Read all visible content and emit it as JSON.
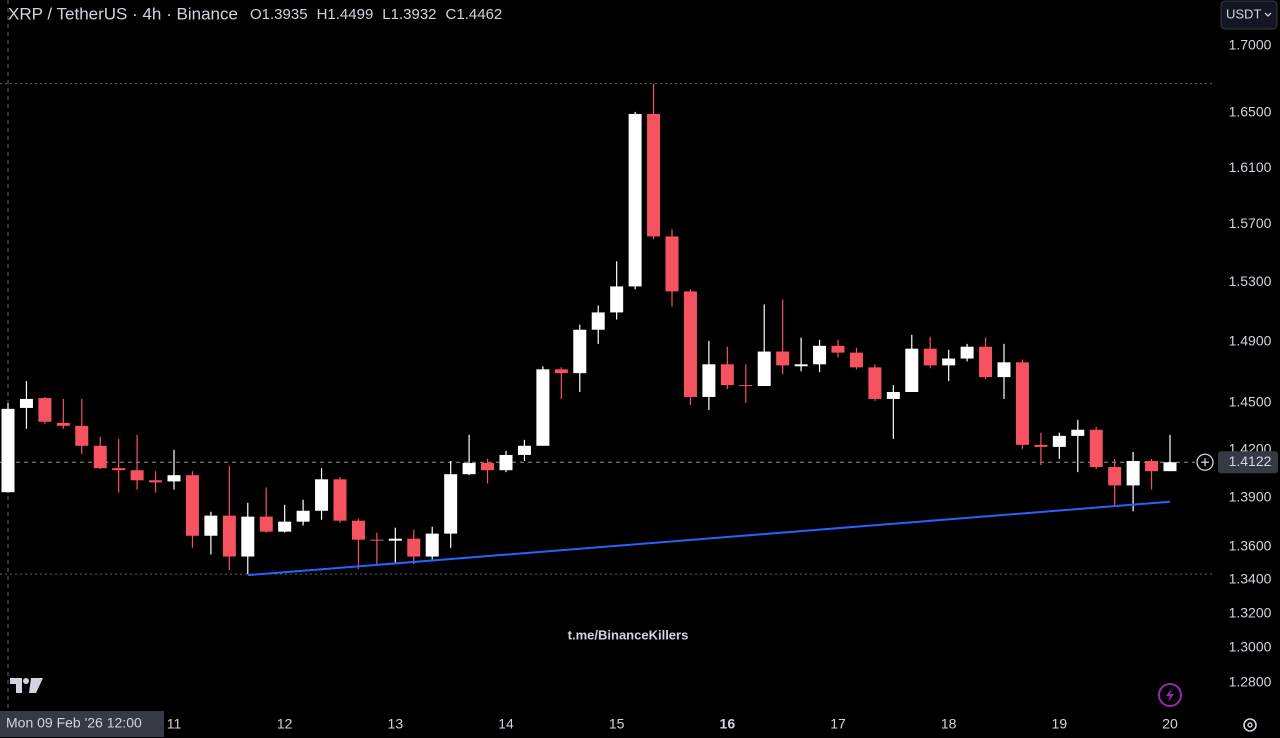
{
  "chart_data": {
    "type": "candlestick",
    "title": "XRP / TetherUS · 4h · Binance",
    "ohlc_legend": [
      {
        "key": "O",
        "value": 1.3935
      },
      {
        "key": "H",
        "value": 1.4499
      },
      {
        "key": "L",
        "value": 1.3932
      },
      {
        "key": "C",
        "value": 1.4462
      }
    ],
    "currency": "USDT",
    "watermark": "t.me/BinanceKillers",
    "crosshair_label": "Mon 09 Feb '26 12:00",
    "categories": [
      null,
      null,
      null,
      null,
      null,
      null,
      null,
      null,
      null,
      "11",
      null,
      null,
      null,
      null,
      null,
      "12",
      null,
      null,
      null,
      null,
      null,
      "13",
      null,
      null,
      null,
      null,
      null,
      "14",
      null,
      null,
      null,
      null,
      null,
      "15",
      null,
      null,
      null,
      null,
      null,
      "16",
      null,
      null,
      null,
      null,
      null,
      "17",
      null,
      null,
      null,
      null,
      null,
      "18",
      null,
      null,
      null,
      null,
      null,
      "19",
      null,
      null,
      null,
      null,
      null,
      "20"
    ],
    "bold_categories": [
      39
    ],
    "open": [
      1.3935,
      1.4468,
      1.4532,
      1.4372,
      1.4353,
      1.4226,
      1.4085,
      1.4072,
      1.4009,
      1.4002,
      1.4041,
      1.3667,
      1.379,
      1.3541,
      1.3784,
      1.3692,
      1.3753,
      1.382,
      1.4015,
      1.3759,
      1.3643,
      1.3637,
      1.3649,
      1.3541,
      1.368,
      1.4047,
      1.4117,
      1.4072,
      1.4168,
      1.4226,
      1.4719,
      1.4694,
      1.4981,
      1.5097,
      1.5273,
      1.6493,
      1.5617,
      1.5239,
      1.4539,
      1.4752,
      1.4616,
      1.461,
      1.4836,
      1.4739,
      1.4752,
      1.4874,
      1.4829,
      1.4732,
      1.4526,
      1.4571,
      1.4855,
      1.4745,
      1.479,
      1.4868,
      1.4668,
      1.4765,
      1.4232,
      1.4219,
      1.4289,
      1.4328,
      1.4092,
      1.3977,
      1.413,
      1.4066
    ],
    "high": [
      1.4499,
      1.4642,
      1.4539,
      1.4526,
      1.4526,
      1.4283,
      1.427,
      1.4296,
      1.4066,
      1.42,
      1.4066,
      1.3814,
      1.4098,
      1.3869,
      1.3964,
      1.3857,
      1.3888,
      1.4085,
      1.4028,
      1.3771,
      1.3686,
      1.3716,
      1.3704,
      1.3722,
      1.413,
      1.4296,
      1.4143,
      1.4194,
      1.4264,
      1.4739,
      1.4732,
      1.5015,
      1.5144,
      1.5445,
      1.6508,
      1.6717,
      1.5666,
      1.5253,
      1.4906,
      1.4868,
      1.4752,
      1.5151,
      1.5185,
      1.4928,
      1.4914,
      1.4914,
      1.4861,
      1.4752,
      1.4616,
      1.4947,
      1.4934,
      1.4848,
      1.4887,
      1.4928,
      1.4887,
      1.4784,
      1.4309,
      1.4309,
      1.4392,
      1.4347,
      1.4143,
      1.4187,
      1.4143,
      1.4296
    ],
    "low": [
      1.3932,
      1.4334,
      1.4366,
      1.4334,
      1.4174,
      1.4079,
      1.3932,
      1.3951,
      1.3932,
      1.3951,
      1.3594,
      1.3553,
      1.3459,
      1.3435,
      1.3686,
      1.3686,
      1.3729,
      1.3765,
      1.3747,
      1.3465,
      1.3494,
      1.3494,
      1.3494,
      1.3524,
      1.3594,
      1.4041,
      1.3989,
      1.406,
      1.413,
      1.4226,
      1.4526,
      1.4571,
      1.4887,
      1.5049,
      1.5253,
      1.5597,
      1.5137,
      1.4487,
      1.4455,
      1.459,
      1.45,
      1.461,
      1.4687,
      1.4706,
      1.47,
      1.4797,
      1.4719,
      1.4513,
      1.427,
      1.4571,
      1.4726,
      1.4642,
      1.4771,
      1.4655,
      1.4526,
      1.4207,
      1.4104,
      1.4143,
      1.406,
      1.4079,
      1.3853,
      1.3817,
      1.3951,
      1.4066
    ],
    "close": [
      1.4462,
      1.4526,
      1.4379,
      1.4353,
      1.4226,
      1.4085,
      1.4072,
      1.4009,
      1.3996,
      1.4041,
      1.3667,
      1.379,
      1.3541,
      1.3784,
      1.3692,
      1.3753,
      1.382,
      1.4015,
      1.3759,
      1.3643,
      1.3637,
      1.3649,
      1.3541,
      1.368,
      1.4047,
      1.4117,
      1.4072,
      1.4168,
      1.4226,
      1.4719,
      1.4694,
      1.4981,
      1.5097,
      1.5273,
      1.6493,
      1.5617,
      1.5239,
      1.4539,
      1.4752,
      1.4616,
      1.461,
      1.4836,
      1.4745,
      1.4752,
      1.4874,
      1.4829,
      1.4732,
      1.4526,
      1.4571,
      1.4855,
      1.4745,
      1.479,
      1.4868,
      1.4668,
      1.4765,
      1.4232,
      1.4219,
      1.4289,
      1.4328,
      1.4092,
      1.3977,
      1.413,
      1.4066,
      1.4122
    ],
    "up_color": "#ffffff",
    "down_color": "#f7525f",
    "log_scale": true,
    "ylim": [
      1.2646,
      1.7352
    ],
    "yticks": [
      {
        "value": 1.7,
        "label": "1.7000"
      },
      {
        "value": 1.65,
        "label": "1.6500"
      },
      {
        "value": 1.61,
        "label": "1.6100"
      },
      {
        "value": 1.57,
        "label": "1.5700"
      },
      {
        "value": 1.53,
        "label": "1.5300"
      },
      {
        "value": 1.49,
        "label": "1.4900"
      },
      {
        "value": 1.45,
        "label": "1.4500"
      },
      {
        "value": 1.42,
        "label": "1.4200"
      },
      {
        "value": 1.39,
        "label": "1.3900"
      },
      {
        "value": 1.36,
        "label": "1.3600"
      },
      {
        "value": 1.34,
        "label": "1.3400"
      },
      {
        "value": 1.32,
        "label": "1.3200"
      },
      {
        "value": 1.3,
        "label": "1.3000"
      },
      {
        "value": 1.28,
        "label": "1.2800"
      }
    ],
    "levels": [
      1.6717,
      1.3435
    ],
    "last_price": 1.4122,
    "trendline": {
      "color": "#2962ff",
      "points": [
        {
          "x": 13,
          "y": 1.3429
        },
        {
          "x": 63,
          "y": 1.3876
        }
      ]
    }
  }
}
